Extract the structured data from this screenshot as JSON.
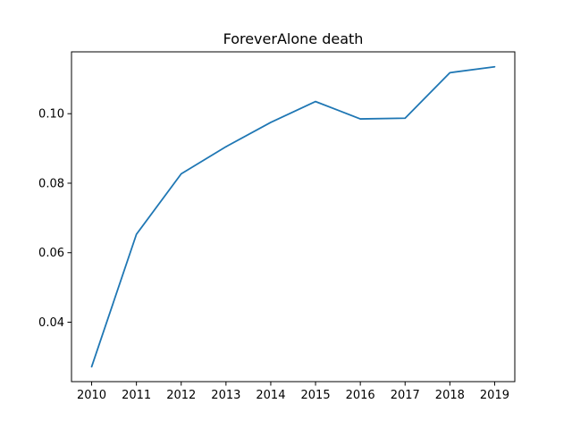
{
  "chart_data": {
    "type": "line",
    "title": "ForeverAlone death",
    "xlabel": "",
    "ylabel": "",
    "x": [
      2010,
      2011,
      2012,
      2013,
      2014,
      2015,
      2016,
      2017,
      2018,
      2019
    ],
    "x_tick_labels": [
      "2010",
      "2011",
      "2012",
      "2013",
      "2014",
      "2015",
      "2016",
      "2017",
      "2018",
      "2019"
    ],
    "series": [
      {
        "values": [
          0.0272,
          0.0653,
          0.0827,
          0.0905,
          0.0975,
          0.1035,
          0.0985,
          0.0987,
          0.1118,
          0.1135
        ],
        "color": "#1f77b4"
      }
    ],
    "xlim": [
      2009.55,
      2019.45
    ],
    "ylim": [
      0.0229,
      0.1178
    ],
    "y_ticks": [
      0.04,
      0.06,
      0.08,
      0.1
    ],
    "y_tick_labels": [
      "0.04",
      "0.06",
      "0.08",
      "0.10"
    ],
    "grid": false,
    "legend": "none"
  }
}
